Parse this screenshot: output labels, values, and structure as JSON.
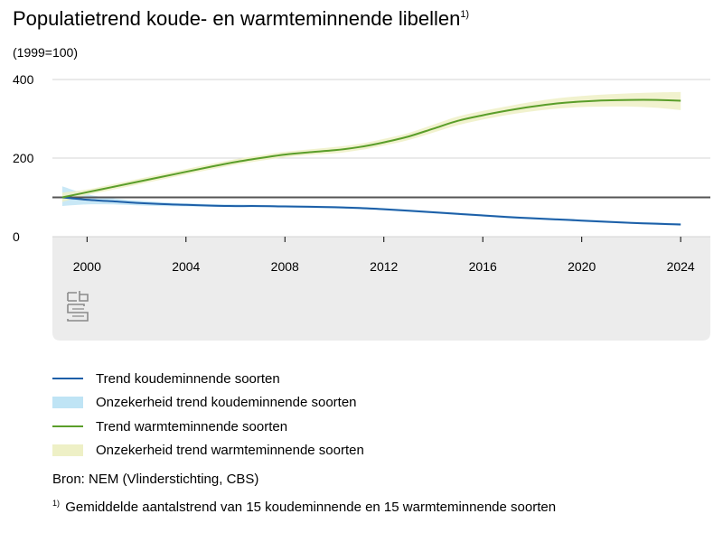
{
  "header": {
    "title": "Populatietrend koude- en warmteminnende libellen",
    "title_mark": "1)",
    "subtitle": "(1999=100)"
  },
  "logo": {
    "name": "cbs-logo",
    "text": "cbs"
  },
  "legend": {
    "items": [
      {
        "label": "Trend koudeminnende soorten",
        "kind": "line",
        "color": "#1d5fa8"
      },
      {
        "label": "Onzekerheid trend koudeminnende soorten",
        "kind": "band",
        "color": "#bfe4f5"
      },
      {
        "label": "Trend warmteminnende soorten",
        "kind": "line",
        "color": "#5a9e2a"
      },
      {
        "label": "Onzekerheid trend warmteminnende soorten",
        "kind": "band",
        "color": "#eef0c6"
      }
    ]
  },
  "source": "Bron: NEM (Vlinderstichting, CBS)",
  "footnote": {
    "mark": "1)",
    "text": "Gemiddelde aantalstrend van 15 koudeminnende en 15 warmteminnende soorten"
  },
  "chart_data": {
    "type": "line",
    "title": "Populatietrend koude- en warmteminnende libellen",
    "subtitle": "(1999=100)",
    "xlabel": "",
    "ylabel": "",
    "xlim": [
      1998.6,
      2025.2
    ],
    "ylim": [
      0,
      400
    ],
    "x_ticks": [
      2000,
      2004,
      2008,
      2012,
      2016,
      2020,
      2024
    ],
    "y_ticks": [
      0,
      200,
      400
    ],
    "reference_value": 100,
    "grid": true,
    "legend_position": "bottom",
    "x": [
      1999,
      2000,
      2001,
      2002,
      2003,
      2004,
      2005,
      2006,
      2007,
      2008,
      2009,
      2010,
      2011,
      2012,
      2013,
      2014,
      2015,
      2016,
      2017,
      2018,
      2019,
      2020,
      2021,
      2022,
      2023,
      2024
    ],
    "series": [
      {
        "name": "Trend koudeminnende soorten",
        "color": "#1d5fa8",
        "values": [
          100,
          94,
          90,
          86,
          83,
          81,
          79,
          78,
          78,
          77,
          76,
          75,
          73,
          70,
          66,
          62,
          58,
          54,
          50,
          47,
          44,
          41,
          38,
          35,
          33,
          31
        ],
        "lower": [
          78,
          82,
          82,
          80,
          78,
          77,
          76,
          75,
          75,
          74,
          73,
          72,
          70,
          67,
          63,
          59,
          55,
          51,
          47,
          44,
          41,
          38,
          35,
          33,
          30,
          28
        ],
        "upper": [
          128,
          108,
          98,
          92,
          88,
          85,
          83,
          82,
          81,
          80,
          79,
          78,
          76,
          73,
          69,
          65,
          61,
          57,
          53,
          50,
          47,
          44,
          41,
          38,
          36,
          34
        ],
        "band_name": "Onzekerheid trend koudeminnende soorten",
        "band_color": "#bfe4f5"
      },
      {
        "name": "Trend warmteminnende soorten",
        "color": "#5a9e2a",
        "values": [
          100,
          113,
          126,
          139,
          152,
          165,
          178,
          190,
          200,
          209,
          215,
          220,
          228,
          240,
          255,
          275,
          295,
          309,
          321,
          331,
          339,
          344,
          347,
          348,
          348,
          346
        ],
        "lower": [
          88,
          106,
          119,
          132,
          145,
          158,
          171,
          183,
          193,
          202,
          208,
          212,
          220,
          232,
          246,
          265,
          284,
          298,
          310,
          319,
          326,
          330,
          331,
          331,
          328,
          322
        ],
        "upper": [
          112,
          120,
          133,
          146,
          159,
          172,
          185,
          197,
          207,
          216,
          222,
          228,
          236,
          249,
          264,
          285,
          306,
          320,
          332,
          343,
          352,
          358,
          362,
          365,
          367,
          368
        ],
        "band_name": "Onzekerheid trend warmteminnende soorten",
        "band_color": "#eef0c6"
      }
    ]
  }
}
